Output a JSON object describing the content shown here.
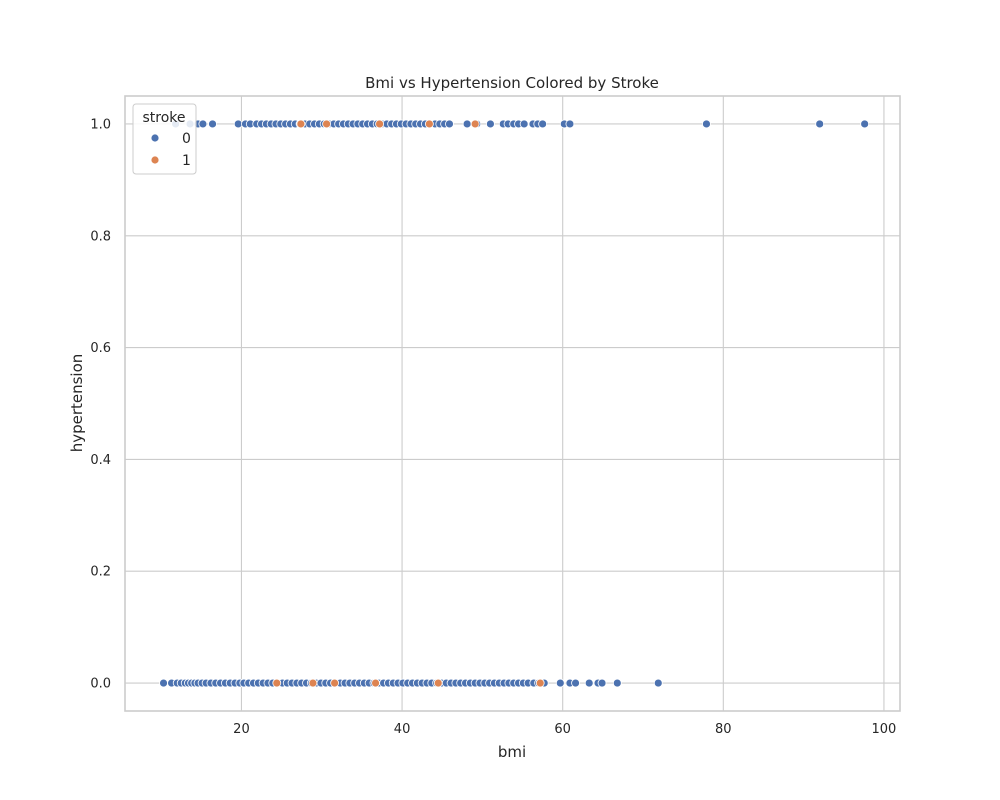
{
  "chart_data": {
    "type": "scatter",
    "title": "Bmi vs Hypertension Colored by Stroke",
    "xlabel": "bmi",
    "ylabel": "hypertension",
    "xlim": [
      5.5,
      102
    ],
    "ylim": [
      -0.05,
      1.05
    ],
    "xticks": [
      20,
      40,
      60,
      80,
      100
    ],
    "yticks": [
      0.0,
      0.2,
      0.4,
      0.6,
      0.8,
      1.0
    ],
    "xtick_labels": [
      "20",
      "40",
      "60",
      "80",
      "100"
    ],
    "ytick_labels": [
      "0.0",
      "0.2",
      "0.4",
      "0.6",
      "0.8",
      "1.0"
    ],
    "grid": true,
    "legend": {
      "title": "stroke",
      "placement": "top-left",
      "entries": [
        {
          "label": "0",
          "color": "#4c72b0"
        },
        {
          "label": "1",
          "color": "#dd8452"
        }
      ]
    },
    "series": [
      {
        "name": "0",
        "color": "#4c72b0",
        "points": [
          {
            "x": 10.3,
            "y": 0
          },
          {
            "x": 11.3,
            "y": 0
          },
          {
            "x": 12.0,
            "y": 0
          },
          {
            "x": 12.5,
            "y": 0
          },
          {
            "x": 13.0,
            "y": 0
          },
          {
            "x": 13.4,
            "y": 0
          },
          {
            "x": 13.8,
            "y": 0
          },
          {
            "x": 14.2,
            "y": 0
          },
          {
            "x": 14.6,
            "y": 0
          },
          {
            "x": 15.1,
            "y": 0
          },
          {
            "x": 15.6,
            "y": 0
          },
          {
            "x": 16.2,
            "y": 0
          },
          {
            "x": 16.8,
            "y": 0
          },
          {
            "x": 17.4,
            "y": 0
          },
          {
            "x": 18.0,
            "y": 0
          },
          {
            "x": 18.6,
            "y": 0
          },
          {
            "x": 19.2,
            "y": 0
          },
          {
            "x": 19.8,
            "y": 0
          },
          {
            "x": 20.3,
            "y": 0
          },
          {
            "x": 20.9,
            "y": 0
          },
          {
            "x": 21.5,
            "y": 0
          },
          {
            "x": 22.1,
            "y": 0
          },
          {
            "x": 22.7,
            "y": 0
          },
          {
            "x": 23.3,
            "y": 0
          },
          {
            "x": 23.9,
            "y": 0
          },
          {
            "x": 24.5,
            "y": 0
          },
          {
            "x": 25.1,
            "y": 0
          },
          {
            "x": 25.7,
            "y": 0
          },
          {
            "x": 26.3,
            "y": 0
          },
          {
            "x": 26.9,
            "y": 0
          },
          {
            "x": 27.5,
            "y": 0
          },
          {
            "x": 28.1,
            "y": 0
          },
          {
            "x": 28.7,
            "y": 0
          },
          {
            "x": 29.3,
            "y": 0
          },
          {
            "x": 29.9,
            "y": 0
          },
          {
            "x": 30.5,
            "y": 0
          },
          {
            "x": 31.1,
            "y": 0
          },
          {
            "x": 31.7,
            "y": 0
          },
          {
            "x": 32.3,
            "y": 0
          },
          {
            "x": 32.9,
            "y": 0
          },
          {
            "x": 33.5,
            "y": 0
          },
          {
            "x": 34.1,
            "y": 0
          },
          {
            "x": 34.7,
            "y": 0
          },
          {
            "x": 35.3,
            "y": 0
          },
          {
            "x": 35.9,
            "y": 0
          },
          {
            "x": 36.5,
            "y": 0
          },
          {
            "x": 37.1,
            "y": 0
          },
          {
            "x": 37.7,
            "y": 0
          },
          {
            "x": 38.3,
            "y": 0
          },
          {
            "x": 38.9,
            "y": 0
          },
          {
            "x": 39.5,
            "y": 0
          },
          {
            "x": 40.1,
            "y": 0
          },
          {
            "x": 40.7,
            "y": 0
          },
          {
            "x": 41.3,
            "y": 0
          },
          {
            "x": 41.9,
            "y": 0
          },
          {
            "x": 42.5,
            "y": 0
          },
          {
            "x": 43.1,
            "y": 0
          },
          {
            "x": 43.7,
            "y": 0
          },
          {
            "x": 44.3,
            "y": 0
          },
          {
            "x": 44.9,
            "y": 0
          },
          {
            "x": 45.5,
            "y": 0
          },
          {
            "x": 46.1,
            "y": 0
          },
          {
            "x": 46.7,
            "y": 0
          },
          {
            "x": 47.3,
            "y": 0
          },
          {
            "x": 47.9,
            "y": 0
          },
          {
            "x": 48.5,
            "y": 0
          },
          {
            "x": 49.1,
            "y": 0
          },
          {
            "x": 49.7,
            "y": 0
          },
          {
            "x": 50.3,
            "y": 0
          },
          {
            "x": 50.9,
            "y": 0
          },
          {
            "x": 51.5,
            "y": 0
          },
          {
            "x": 52.1,
            "y": 0
          },
          {
            "x": 52.7,
            "y": 0
          },
          {
            "x": 53.3,
            "y": 0
          },
          {
            "x": 53.9,
            "y": 0
          },
          {
            "x": 54.5,
            "y": 0
          },
          {
            "x": 55.1,
            "y": 0
          },
          {
            "x": 55.7,
            "y": 0
          },
          {
            "x": 56.4,
            "y": 0
          },
          {
            "x": 57.0,
            "y": 0
          },
          {
            "x": 57.7,
            "y": 0
          },
          {
            "x": 59.7,
            "y": 0
          },
          {
            "x": 60.9,
            "y": 0
          },
          {
            "x": 61.6,
            "y": 0
          },
          {
            "x": 63.3,
            "y": 0
          },
          {
            "x": 64.4,
            "y": 0
          },
          {
            "x": 64.9,
            "y": 0
          },
          {
            "x": 66.8,
            "y": 0
          },
          {
            "x": 71.9,
            "y": 0
          },
          {
            "x": 11.8,
            "y": 1
          },
          {
            "x": 13.6,
            "y": 1
          },
          {
            "x": 14.6,
            "y": 1
          },
          {
            "x": 15.2,
            "y": 1
          },
          {
            "x": 16.4,
            "y": 1
          },
          {
            "x": 19.6,
            "y": 1
          },
          {
            "x": 20.5,
            "y": 1
          },
          {
            "x": 21.1,
            "y": 1
          },
          {
            "x": 21.9,
            "y": 1
          },
          {
            "x": 22.5,
            "y": 1
          },
          {
            "x": 23.1,
            "y": 1
          },
          {
            "x": 23.7,
            "y": 1
          },
          {
            "x": 24.3,
            "y": 1
          },
          {
            "x": 24.9,
            "y": 1
          },
          {
            "x": 25.5,
            "y": 1
          },
          {
            "x": 26.1,
            "y": 1
          },
          {
            "x": 26.7,
            "y": 1
          },
          {
            "x": 27.3,
            "y": 1
          },
          {
            "x": 27.9,
            "y": 1
          },
          {
            "x": 28.5,
            "y": 1
          },
          {
            "x": 29.1,
            "y": 1
          },
          {
            "x": 29.7,
            "y": 1
          },
          {
            "x": 30.3,
            "y": 1
          },
          {
            "x": 30.9,
            "y": 1
          },
          {
            "x": 31.5,
            "y": 1
          },
          {
            "x": 32.1,
            "y": 1
          },
          {
            "x": 32.7,
            "y": 1
          },
          {
            "x": 33.3,
            "y": 1
          },
          {
            "x": 33.9,
            "y": 1
          },
          {
            "x": 34.5,
            "y": 1
          },
          {
            "x": 35.1,
            "y": 1
          },
          {
            "x": 35.7,
            "y": 1
          },
          {
            "x": 36.3,
            "y": 1
          },
          {
            "x": 36.9,
            "y": 1
          },
          {
            "x": 37.5,
            "y": 1
          },
          {
            "x": 38.1,
            "y": 1
          },
          {
            "x": 38.7,
            "y": 1
          },
          {
            "x": 39.3,
            "y": 1
          },
          {
            "x": 39.9,
            "y": 1
          },
          {
            "x": 40.5,
            "y": 1
          },
          {
            "x": 41.1,
            "y": 1
          },
          {
            "x": 41.7,
            "y": 1
          },
          {
            "x": 42.3,
            "y": 1
          },
          {
            "x": 42.9,
            "y": 1
          },
          {
            "x": 43.5,
            "y": 1
          },
          {
            "x": 44.1,
            "y": 1
          },
          {
            "x": 44.7,
            "y": 1
          },
          {
            "x": 45.3,
            "y": 1
          },
          {
            "x": 45.9,
            "y": 1
          },
          {
            "x": 48.1,
            "y": 1
          },
          {
            "x": 49.3,
            "y": 1
          },
          {
            "x": 51.0,
            "y": 1
          },
          {
            "x": 52.6,
            "y": 1
          },
          {
            "x": 53.2,
            "y": 1
          },
          {
            "x": 53.9,
            "y": 1
          },
          {
            "x": 54.5,
            "y": 1
          },
          {
            "x": 55.2,
            "y": 1
          },
          {
            "x": 56.3,
            "y": 1
          },
          {
            "x": 56.9,
            "y": 1
          },
          {
            "x": 57.5,
            "y": 1
          },
          {
            "x": 60.2,
            "y": 1
          },
          {
            "x": 60.9,
            "y": 1
          },
          {
            "x": 77.9,
            "y": 1
          },
          {
            "x": 92.0,
            "y": 1
          },
          {
            "x": 97.6,
            "y": 1
          }
        ]
      },
      {
        "name": "1",
        "color": "#dd8452",
        "points": [
          {
            "x": 24.4,
            "y": 0
          },
          {
            "x": 28.9,
            "y": 0
          },
          {
            "x": 31.6,
            "y": 0
          },
          {
            "x": 36.7,
            "y": 0
          },
          {
            "x": 44.5,
            "y": 0
          },
          {
            "x": 57.2,
            "y": 0
          },
          {
            "x": 27.4,
            "y": 1
          },
          {
            "x": 30.6,
            "y": 1
          },
          {
            "x": 37.2,
            "y": 1
          },
          {
            "x": 43.4,
            "y": 1
          },
          {
            "x": 49.1,
            "y": 1
          }
        ]
      }
    ]
  }
}
